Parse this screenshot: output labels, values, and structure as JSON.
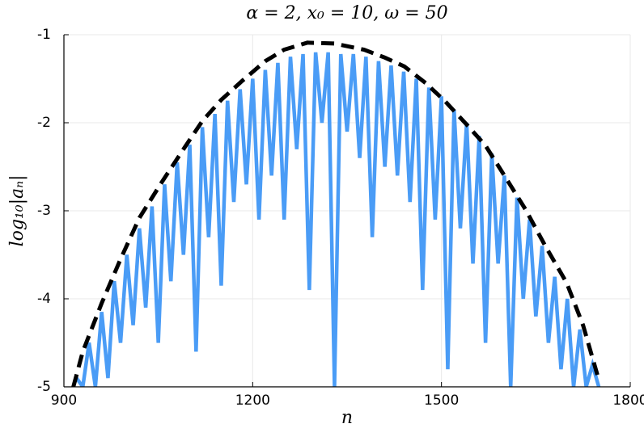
{
  "chart_data": {
    "type": "line",
    "title": "α = 2, x₀ = 10, ω = 50",
    "xlabel": "n",
    "ylabel": "log₁₀|aₙ|",
    "xlim": [
      900,
      1800
    ],
    "xticks": [
      900,
      1200,
      1500,
      1800
    ],
    "ylim": [
      -5,
      -1
    ],
    "yticks": [
      -5,
      -4,
      -3,
      -2,
      -1
    ],
    "grid": true,
    "series": [
      {
        "color": "#4a9cf6",
        "dash": false,
        "x": [
          920,
          930,
          940,
          950,
          960,
          970,
          980,
          990,
          1000,
          1010,
          1020,
          1030,
          1040,
          1050,
          1060,
          1070,
          1080,
          1090,
          1100,
          1110,
          1120,
          1130,
          1140,
          1150,
          1160,
          1170,
          1180,
          1190,
          1200,
          1210,
          1220,
          1230,
          1240,
          1250,
          1260,
          1270,
          1280,
          1290,
          1300,
          1310,
          1320,
          1330,
          1340,
          1350,
          1360,
          1370,
          1380,
          1390,
          1400,
          1410,
          1420,
          1430,
          1440,
          1450,
          1460,
          1470,
          1480,
          1490,
          1500,
          1510,
          1520,
          1530,
          1540,
          1550,
          1560,
          1570,
          1580,
          1590,
          1600,
          1610,
          1620,
          1630,
          1640,
          1650,
          1660,
          1670,
          1680,
          1690,
          1700,
          1710,
          1720,
          1730,
          1740,
          1750
        ],
        "values": [
          -4.9,
          -5.0,
          -4.5,
          -5.0,
          -4.15,
          -4.9,
          -3.8,
          -4.5,
          -3.5,
          -4.3,
          -3.2,
          -4.1,
          -2.95,
          -4.5,
          -2.7,
          -3.8,
          -2.45,
          -3.5,
          -2.25,
          -4.6,
          -2.05,
          -3.3,
          -1.9,
          -3.85,
          -1.75,
          -2.9,
          -1.62,
          -2.7,
          -1.5,
          -3.1,
          -1.4,
          -2.6,
          -1.32,
          -3.1,
          -1.25,
          -2.3,
          -1.22,
          -3.9,
          -1.2,
          -2.0,
          -1.2,
          -5.0,
          -1.22,
          -2.1,
          -1.22,
          -2.4,
          -1.25,
          -3.3,
          -1.3,
          -2.5,
          -1.35,
          -2.6,
          -1.42,
          -2.9,
          -1.5,
          -3.9,
          -1.6,
          -3.1,
          -1.7,
          -4.8,
          -1.85,
          -3.2,
          -2.0,
          -3.6,
          -2.15,
          -4.5,
          -2.35,
          -3.6,
          -2.6,
          -5.0,
          -2.85,
          -4.0,
          -3.1,
          -4.2,
          -3.4,
          -4.5,
          -3.75,
          -4.8,
          -4.0,
          -5.0,
          -4.35,
          -5.0,
          -4.75,
          -5.0
        ]
      },
      {
        "color": "#000000",
        "dash": true,
        "x": [
          915,
          930,
          960,
          990,
          1020,
          1056,
          1090,
          1120,
          1150,
          1184,
          1220,
          1250,
          1287,
          1330,
          1377,
          1410,
          1441,
          1475,
          1505,
          1540,
          1570,
          1600,
          1634,
          1665,
          1699,
          1725,
          1750
        ],
        "values": [
          -5.0,
          -4.6,
          -4.05,
          -3.55,
          -3.08,
          -2.67,
          -2.3,
          -1.98,
          -1.74,
          -1.52,
          -1.3,
          -1.17,
          -1.09,
          -1.1,
          -1.17,
          -1.26,
          -1.36,
          -1.55,
          -1.75,
          -2.02,
          -2.26,
          -2.6,
          -2.99,
          -3.4,
          -3.82,
          -4.3,
          -4.92
        ]
      }
    ]
  }
}
